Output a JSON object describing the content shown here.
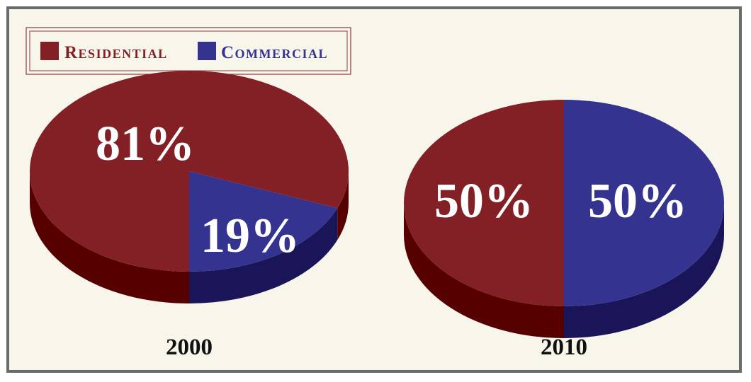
{
  "chart_data": {
    "type": "pie",
    "legend": {
      "position": "top-left",
      "items": [
        {
          "label": "Residential",
          "color": "#832025"
        },
        {
          "label": "Commercial",
          "color": "#343490"
        }
      ]
    },
    "colors": {
      "residential_side": "#570000",
      "commercial_side": "#1a1559",
      "legend_border": "#8a3a3a",
      "frame_border": "#6b6b6b",
      "background": "#f8f5ea"
    },
    "pies": [
      {
        "year": "2000",
        "slices": [
          {
            "category": "Residential",
            "value": 81,
            "label": "81%"
          },
          {
            "category": "Commercial",
            "value": 19,
            "label": "19%"
          }
        ]
      },
      {
        "year": "2010",
        "slices": [
          {
            "category": "Residential",
            "value": 50,
            "label": "50%"
          },
          {
            "category": "Commercial",
            "value": 50,
            "label": "50%"
          }
        ]
      }
    ]
  }
}
